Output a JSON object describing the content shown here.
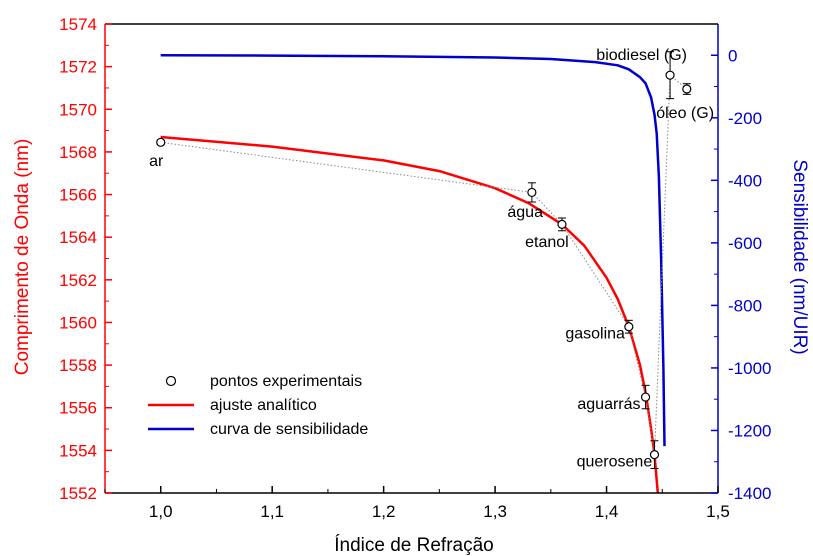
{
  "chart_data": {
    "type": "scatter",
    "xlabel": "Índice de Refração",
    "ylabel_left": "Comprimento de Onda (nm)",
    "ylabel_right": "Sensibilidade (nm/UIR)",
    "xlim": [
      0.95,
      1.5
    ],
    "ylim_left": [
      1552,
      1574
    ],
    "ylim_right": [
      -1400,
      100
    ],
    "x_ticks": [
      1.0,
      1.1,
      1.2,
      1.3,
      1.4,
      1.5
    ],
    "x_tick_labels": [
      "1,0",
      "1,1",
      "1,2",
      "1,3",
      "1,4",
      "1,5"
    ],
    "y_left_ticks": [
      1552,
      1554,
      1556,
      1558,
      1560,
      1562,
      1564,
      1566,
      1568,
      1570,
      1572,
      1574
    ],
    "y_left_tick_labels": [
      "1552",
      "1554",
      "1556",
      "1558",
      "1560",
      "1562",
      "1564",
      "1566",
      "1568",
      "1570",
      "1572",
      "1574"
    ],
    "y_right_ticks": [
      0,
      -200,
      -400,
      -600,
      -800,
      -1000,
      -1200,
      -1400
    ],
    "y_right_tick_labels": [
      "0",
      "-200",
      "-400",
      "-600",
      "-800",
      "-1000",
      "-1200",
      "-1400"
    ],
    "colors": {
      "left_axis": "#ff0000",
      "right_axis": "#0000cc",
      "fit_curve": "#ff0000",
      "sensitivity_curve": "#0000cc",
      "points": "#000000"
    },
    "legend_position": "lower-left",
    "legend": [
      {
        "key": "points",
        "label": "pontos experimentais"
      },
      {
        "key": "fit",
        "label": "ajuste analítico"
      },
      {
        "key": "sensitivity",
        "label": "curva de sensibilidade"
      }
    ],
    "points": [
      {
        "name": "ar",
        "x": 1.0,
        "y": 1568.45,
        "err": 0.1
      },
      {
        "name": "água",
        "x": 1.333,
        "y": 1566.1,
        "err": 0.45
      },
      {
        "name": "etanol",
        "x": 1.36,
        "y": 1564.6,
        "err": 0.3
      },
      {
        "name": "gasolina",
        "x": 1.42,
        "y": 1559.8,
        "err": 0.3
      },
      {
        "name": "aguarrás",
        "x": 1.435,
        "y": 1556.5,
        "err": 0.55
      },
      {
        "name": "querosene",
        "x": 1.443,
        "y": 1553.8,
        "err": 0.65
      },
      {
        "name": "biodiesel (G)",
        "x": 1.457,
        "y": 1571.6,
        "err": 1.1
      },
      {
        "name": "óleo (G)",
        "x": 1.472,
        "y": 1570.95,
        "err": 0.25
      }
    ],
    "fit_curve": {
      "name": "ajuste analítico",
      "x": [
        1.0,
        1.1,
        1.2,
        1.25,
        1.3,
        1.33,
        1.36,
        1.38,
        1.4,
        1.41,
        1.42,
        1.43,
        1.435,
        1.44,
        1.443,
        1.446
      ],
      "y": [
        1568.7,
        1568.25,
        1567.6,
        1567.1,
        1566.3,
        1565.6,
        1564.6,
        1563.6,
        1562.1,
        1561.1,
        1559.8,
        1558.0,
        1556.7,
        1555.0,
        1553.8,
        1552.0
      ]
    },
    "sensitivity_curve": {
      "name": "curva de sensibilidade",
      "x": [
        1.0,
        1.1,
        1.2,
        1.3,
        1.35,
        1.39,
        1.41,
        1.42,
        1.43,
        1.435,
        1.44,
        1.443,
        1.445,
        1.447,
        1.449,
        1.451,
        1.452
      ],
      "y": [
        0,
        -1,
        -3,
        -7,
        -12,
        -22,
        -32,
        -45,
        -70,
        -90,
        -135,
        -190,
        -250,
        -390,
        -660,
        -1000,
        -1250
      ]
    },
    "annotations": [
      {
        "text": "biodiesel (G)",
        "x": 1.4315,
        "y": 1572.3,
        "anchor": "middle"
      },
      {
        "text": "óleo (G)",
        "x": 1.4705,
        "y": 1569.6,
        "anchor": "middle"
      },
      {
        "text": "ar",
        "x": 0.996,
        "y": 1567.35,
        "anchor": "middle"
      },
      {
        "text": "água",
        "x": 1.327,
        "y": 1564.95,
        "anchor": "middle"
      },
      {
        "text": "etanol",
        "x": 1.3465,
        "y": 1563.55,
        "anchor": "middle"
      },
      {
        "text": "gasolina",
        "x": 1.4165,
        "y": 1559.25,
        "anchor": "end"
      },
      {
        "text": "aguarrás",
        "x": 1.4305,
        "y": 1555.95,
        "anchor": "end"
      },
      {
        "text": "querosene",
        "x": 1.441,
        "y": 1553.25,
        "anchor": "end"
      }
    ]
  }
}
